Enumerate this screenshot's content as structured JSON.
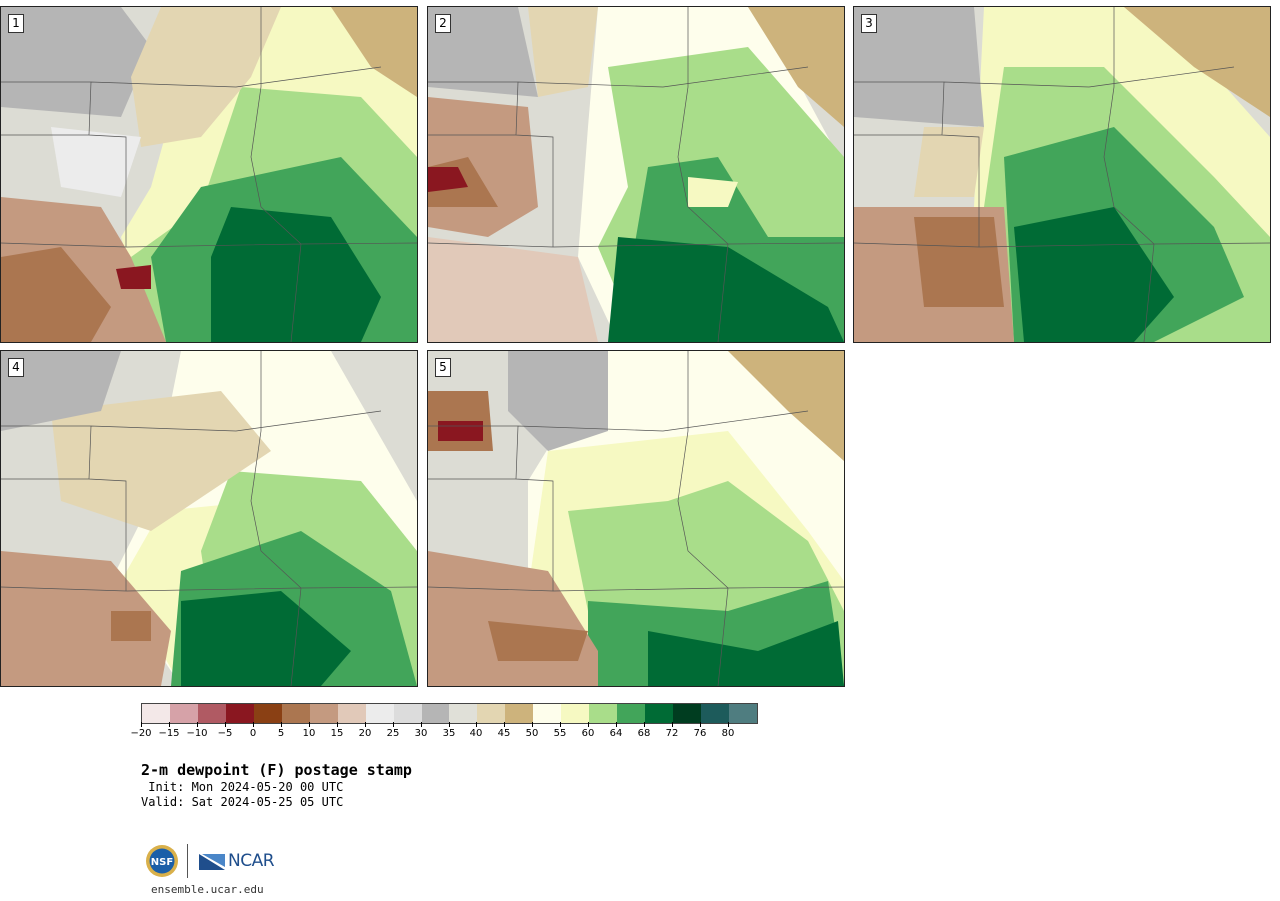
{
  "panels": [
    {
      "label": "1",
      "style": "moist-east"
    },
    {
      "label": "2",
      "style": "moist-south"
    },
    {
      "label": "3",
      "style": "moist-core"
    },
    {
      "label": "4",
      "style": "moist-southeast"
    },
    {
      "label": "5",
      "style": "dry-north"
    }
  ],
  "colorbar": {
    "colors": [
      "#f3e8e8",
      "#d6a2a8",
      "#b05a63",
      "#8a1720",
      "#8a4014",
      "#ab7650",
      "#c49a80",
      "#e1c9b9",
      "#ececec",
      "#dcdcdc",
      "#b5b5b5",
      "#e0e0d8",
      "#e3d6b2",
      "#cdb37c",
      "#fefeec",
      "#f6f9c2",
      "#a9dd8a",
      "#42a55a",
      "#006b35",
      "#003d20",
      "#1d5b5b",
      "#4f7d80"
    ],
    "tick_labels": [
      "−20",
      "−15",
      "−10",
      "−5",
      "0",
      "5",
      "10",
      "15",
      "20",
      "25",
      "30",
      "35",
      "40",
      "45",
      "50",
      "55",
      "60",
      "64",
      "68",
      "72",
      "76",
      "80"
    ]
  },
  "title": "2-m dewpoint (F) postage stamp",
  "init": " Init: Mon 2024-05-20 00 UTC",
  "valid": "Valid: Sat 2024-05-25 05 UTC",
  "logos": {
    "nsf": "NSF",
    "ncar": "NCAR"
  },
  "website": "ensemble.ucar.edu"
}
